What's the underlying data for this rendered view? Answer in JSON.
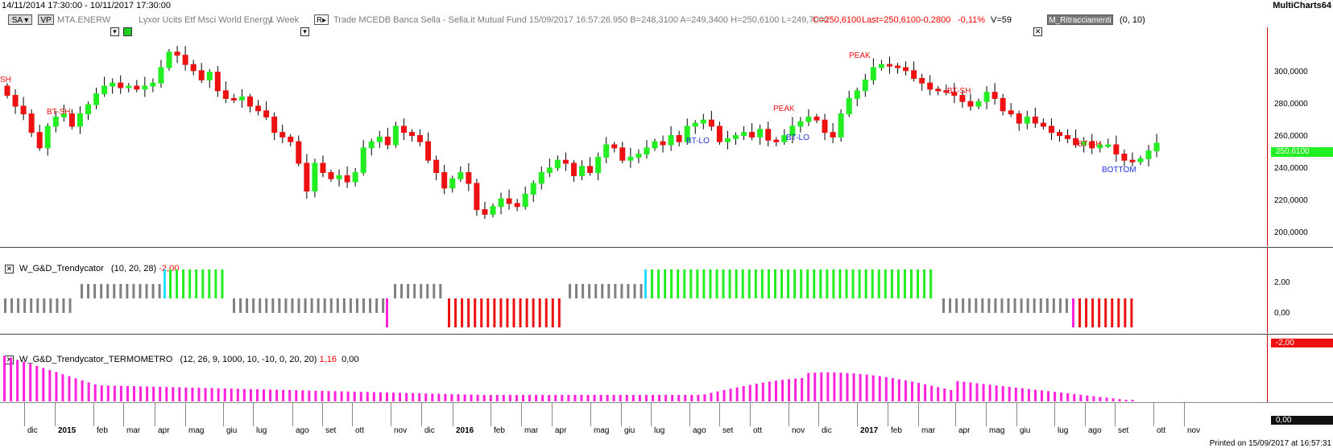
{
  "window": {
    "date_range": "14/11/2014 17:30:00 - 10/11/2017 17:30:00",
    "brand": "MultiCharts64"
  },
  "toolbar": {
    "sa_label": "SA",
    "vp_label": "VP",
    "symbol": "MTA.ENERW",
    "description": "Lyxor Ucits Etf Msci World Energy",
    "timeframe": "1 Week",
    "r_label": "R",
    "quote_line": "Trade  MCEDB  Banca Sella - Sella.it  Mutual Fund  15/09/2017  16:57:26.950  B=248,3100  A=249,3400  H=250,6100  L=249,7000",
    "close_text": "C=250,6100",
    "last_text": "Last=250,6100",
    "change_text": "-0,2800",
    "pct_text": "-0,11%",
    "volume_text": "V=59",
    "study_button": "M_Ritracciamenti",
    "study_params": "(0,  10)"
  },
  "price_panel": {
    "y_labels": [
      "300,0000",
      "280,0000",
      "260,0000",
      "240,0000",
      "220,0000",
      "200,0000"
    ],
    "last_price": "250,6100",
    "annotations": [
      {
        "text": "SH",
        "color": "red"
      },
      {
        "text": "BT-SH",
        "color": "red"
      },
      {
        "text": "BT-LO",
        "color": "blue"
      },
      {
        "text": "PEAK",
        "color": "red"
      },
      {
        "text": "BT-LO",
        "color": "blue"
      },
      {
        "text": "PEAK",
        "color": "red"
      },
      {
        "text": "BT-SH",
        "color": "red"
      },
      {
        "text": "BT-SH",
        "color": "red"
      },
      {
        "text": "BOTTOM",
        "color": "blue"
      }
    ]
  },
  "indicator1": {
    "name": "W_G&D_Trendycator",
    "params": "(10,  20,  28)",
    "value": "-2,00",
    "y_labels": [
      "2,00",
      "0,00"
    ],
    "last_value": "-2,00"
  },
  "indicator2": {
    "name": "W_G&D_Trendycator_TERMOMETRO",
    "params": "(12,  26,  9,  1000,  10,  -10,  0,  20,  20)",
    "value1": "1,16",
    "value2": "0,00",
    "last_value": "0,00"
  },
  "time_axis": {
    "labels": [
      "dic",
      "2015",
      "feb",
      "mar",
      "apr",
      "mag",
      "giu",
      "lug",
      "ago",
      "set",
      "ott",
      "nov",
      "dic",
      "2016",
      "feb",
      "mar",
      "apr",
      "mag",
      "giu",
      "lug",
      "ago",
      "set",
      "ott",
      "nov",
      "dic",
      "2017",
      "feb",
      "mar",
      "apr",
      "mag",
      "giu",
      "lug",
      "ago",
      "set",
      "ott",
      "nov"
    ]
  },
  "footer": {
    "printed": "Printed on 15/09/2017 at 16:57:31"
  },
  "colors": {
    "up": "#22ee22",
    "down": "#ee1111",
    "neutral": "#808080",
    "magenta": "#ff22dd",
    "cyan": "#22ddff",
    "axis": "#cc0000"
  }
}
